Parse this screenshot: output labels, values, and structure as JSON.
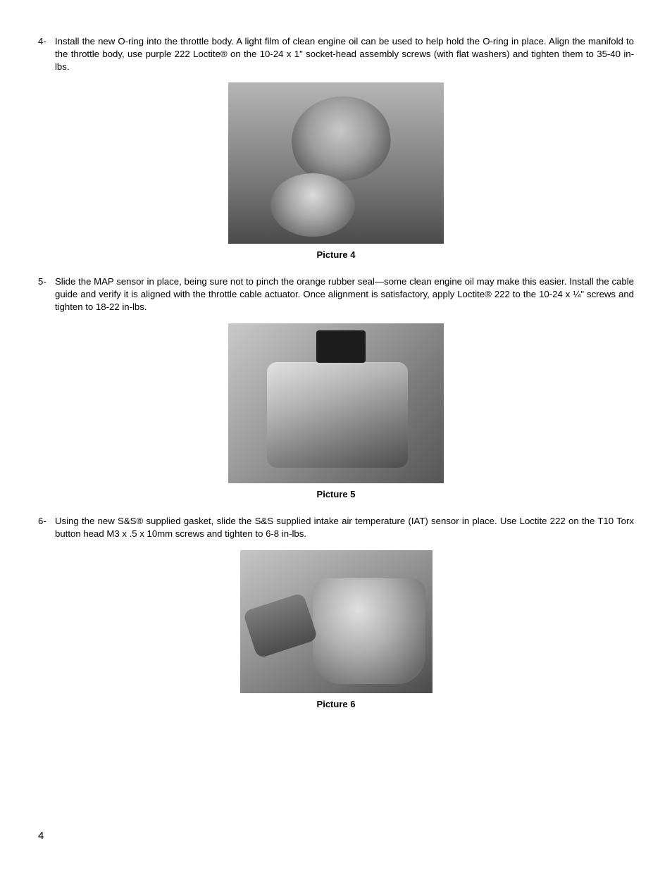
{
  "page_number": "4",
  "steps": [
    {
      "num": "4-",
      "text": "Install the new O-ring into the throttle body. A light film of clean engine oil can be used to help hold the O-ring in place. Align the manifold to the throttle body, use purple 222 Loctite® on the 10-24 x 1\" socket-head assembly screws (with flat washers) and tighten them to 35-40 in-lbs."
    },
    {
      "num": "5-",
      "text": "Slide the MAP sensor in place, being sure not to pinch the orange rubber seal—some clean engine oil may make this easier. Install the cable guide and verify it is aligned with the throttle cable actuator. Once alignment is satisfactory, apply Loctite® 222 to the 10-24 x ¼\" screws and tighten to 18-22 in-lbs."
    },
    {
      "num": "6-",
      "text": "Using the new S&S® supplied gasket, slide the S&S supplied intake air temperature (IAT) sensor in place. Use Loctite 222 on the T10 Torx button head M3 x .5 x 10mm screws and tighten to 6-8 in-lbs."
    }
  ],
  "figures": [
    {
      "caption": "Picture 4"
    },
    {
      "caption": "Picture 5"
    },
    {
      "caption": "Picture 6"
    }
  ]
}
